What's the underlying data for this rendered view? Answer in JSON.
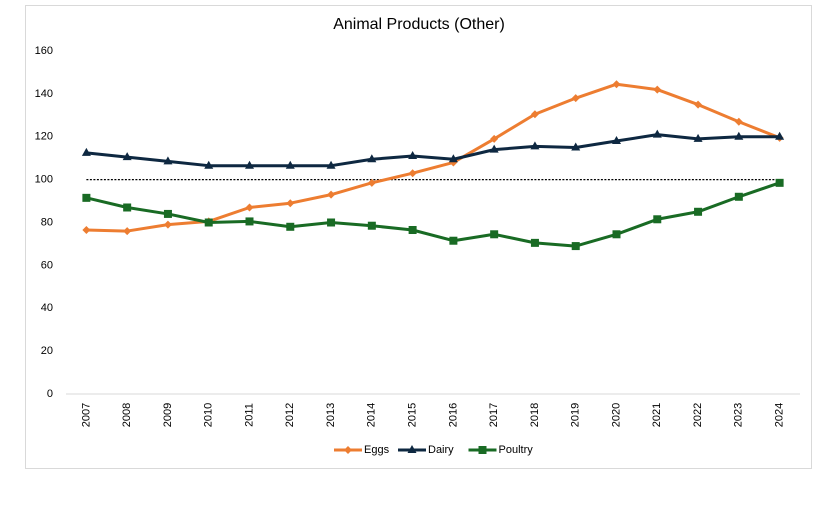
{
  "chart_data": {
    "type": "line",
    "title": "Animal Products (Other)",
    "categories": [
      "2007",
      "2008",
      "2009",
      "2010",
      "2011",
      "2012",
      "2013",
      "2014",
      "2015",
      "2016",
      "2017",
      "2018",
      "2019",
      "2020",
      "2021",
      "2022",
      "2023",
      "2024"
    ],
    "series": [
      {
        "name": "Eggs",
        "color": "#ed7d31",
        "marker": "diamond",
        "values": [
          76.5,
          76,
          79,
          80.5,
          87,
          89,
          93,
          98.5,
          103,
          108,
          119,
          130.5,
          138,
          144.5,
          142,
          135,
          127,
          119.5
        ]
      },
      {
        "name": "Dairy",
        "color": "#0e2841",
        "marker": "triangle",
        "values": [
          112.5,
          110.5,
          108.5,
          106.5,
          106.5,
          106.5,
          106.5,
          109.5,
          111,
          109.5,
          114,
          115.5,
          115,
          118,
          121,
          119,
          120,
          120
        ]
      },
      {
        "name": "Poultry",
        "color": "#196b24",
        "marker": "square",
        "values": [
          91.5,
          87,
          84,
          80,
          80.5,
          78,
          80,
          78.5,
          76.5,
          71.5,
          74.5,
          70.5,
          69,
          74.5,
          81.5,
          85,
          92,
          98.5
        ]
      }
    ],
    "reference_line": 100,
    "ylim": [
      0,
      160
    ],
    "yticks": [
      0,
      20,
      40,
      60,
      80,
      100,
      120,
      140,
      160
    ],
    "grid": false,
    "legend": "bottom"
  }
}
